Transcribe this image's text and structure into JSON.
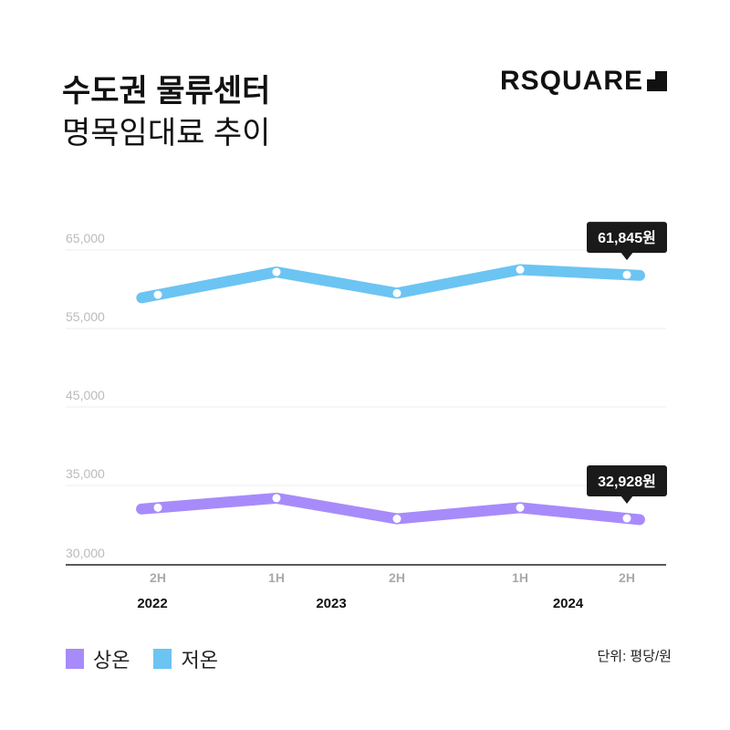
{
  "header": {
    "title_line1": "수도권 물류센터",
    "title_line2": "명목임대료 추이",
    "logo": "RSQUARE"
  },
  "legend": [
    {
      "label": "상온",
      "color": "#A78BFA"
    },
    {
      "label": "저온",
      "color": "#6CC4F2"
    }
  ],
  "unit_label": "단위: 평당/원",
  "chart_data": {
    "type": "line",
    "x_periods": [
      "2H",
      "1H",
      "2H",
      "1H",
      "2H"
    ],
    "x_years": [
      {
        "label": "2022",
        "index": 0
      },
      {
        "label": "2023",
        "index": 1.5
      },
      {
        "label": "2024",
        "index": 3.5
      }
    ],
    "y_ticks": [
      {
        "value": 65000,
        "label": "65,000"
      },
      {
        "value": 55000,
        "label": "55,000"
      },
      {
        "value": 45000,
        "label": "45,000"
      },
      {
        "value": 35000,
        "label": "35,000"
      },
      {
        "value": 30000,
        "label": "30,000"
      }
    ],
    "y_axis_break": "between 30,000 and 35,000",
    "grid": true,
    "series": [
      {
        "name": "상온",
        "color": "#A78BFA",
        "values": [
          33600,
          34200,
          32900,
          33600,
          32928
        ],
        "end_label": "32,928원"
      },
      {
        "name": "저온",
        "color": "#6CC4F2",
        "values": [
          59300,
          62200,
          59500,
          62500,
          61845
        ],
        "end_label": "61,845원"
      }
    ]
  }
}
